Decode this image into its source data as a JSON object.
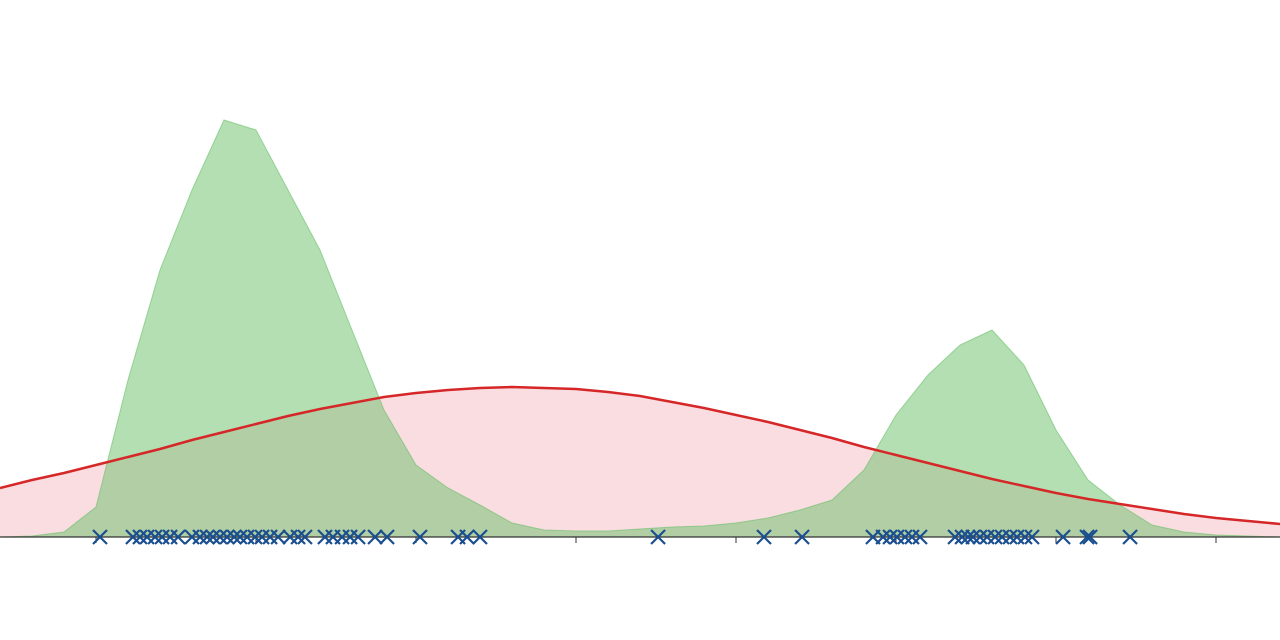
{
  "chart_data": {
    "type": "density",
    "x": [
      -0.6,
      -0.4,
      -0.2,
      0,
      0.2,
      0.4,
      0.6,
      0.8,
      1.0,
      1.2,
      1.4,
      1.6,
      1.8,
      2.0,
      2.2,
      2.4,
      2.6,
      2.8,
      3.0,
      3.2,
      3.4,
      3.6,
      3.8,
      4.0,
      4.2,
      4.4,
      4.6,
      4.8,
      5.0,
      5.2,
      5.4,
      5.6,
      5.8,
      6.0,
      6.2,
      6.4,
      6.6,
      6.8,
      7.0,
      7.2,
      7.4
    ],
    "series": [
      {
        "type": "fit",
        "color": "#d62728",
        "fill": "#fadde1",
        "values": [
          0.049,
          0.057,
          0.064,
          0.072,
          0.08,
          0.088,
          0.097,
          0.105,
          0.113,
          0.121,
          0.128,
          0.134,
          0.14,
          0.144,
          0.147,
          0.149,
          0.15,
          0.149,
          0.148,
          0.145,
          0.141,
          0.135,
          0.129,
          0.122,
          0.115,
          0.107,
          0.099,
          0.09,
          0.082,
          0.074,
          0.066,
          0.058,
          0.051,
          0.044,
          0.038,
          0.033,
          0.028,
          0.023,
          0.019,
          0.016,
          0.013
        ]
      },
      {
        "type": "histogram",
        "color": "#67bf67",
        "values": [
          0,
          0.001,
          0.005,
          0.03,
          0.157,
          0.267,
          0.347,
          0.417,
          0.407,
          0.347,
          0.287,
          0.207,
          0.127,
          0.072,
          0.049,
          0.032,
          0.014,
          0.007,
          0.006,
          0.006,
          0.008,
          0.01,
          0.011,
          0.014,
          0.019,
          0.027,
          0.037,
          0.067,
          0.122,
          0.162,
          0.192,
          0.207,
          0.172,
          0.107,
          0.057,
          0.032,
          0.012,
          0.005,
          0.002,
          0.001,
          0
        ]
      }
    ],
    "samples": {
      "color": "#1a4f8f",
      "values": [
        0.025,
        0.231,
        0.275,
        0.319,
        0.369,
        0.413,
        0.463,
        0.513,
        0.6,
        0.65,
        0.694,
        0.731,
        0.775,
        0.819,
        0.863,
        0.9,
        0.944,
        0.994,
        1.038,
        1.088,
        1.138,
        1.213,
        1.263,
        1.306,
        1.431,
        1.481,
        1.538,
        1.588,
        1.638,
        1.744,
        1.819,
        2.025,
        2.263,
        2.319,
        2.4,
        3.513,
        4.175,
        4.413,
        4.856,
        4.919,
        4.963,
        5.006,
        5.056,
        5.1,
        5.15,
        5.369,
        5.413,
        5.45,
        5.481,
        5.525,
        5.569,
        5.619,
        5.663,
        5.713,
        5.756,
        5.806,
        5.85,
        6.044,
        6.194,
        6.213,
        6.463
      ]
    },
    "xlim": [
      -0.6,
      7.4
    ],
    "xticks": [
      0,
      1,
      2,
      3,
      4,
      5,
      6,
      7
    ],
    "ylim": [
      0,
      0.5
    ]
  }
}
